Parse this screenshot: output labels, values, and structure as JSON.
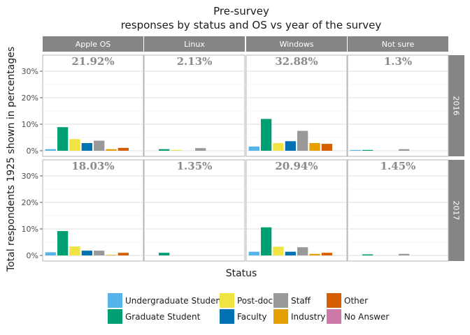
{
  "chart_data": {
    "type": "bar",
    "title": "Pre-survey",
    "subtitle": "responses by status and OS vs year of the survey",
    "xlabel": "Status",
    "ylabel": "Total respondents 1925 shown in percentages",
    "ylim": [
      0,
      35
    ],
    "yticks": [
      0,
      10,
      20,
      30
    ],
    "ytick_labels": [
      "0%",
      "10%",
      "20%",
      "30%"
    ],
    "facet_columns": [
      "Apple OS",
      "Linux",
      "Windows",
      "Not sure"
    ],
    "facet_rows": [
      "2016",
      "2017"
    ],
    "categories": [
      "Undergraduate Student",
      "Graduate Student",
      "Post-doc",
      "Faculty",
      "Staff",
      "Industry",
      "Other",
      "No Answer"
    ],
    "colors": [
      "#56B4E9",
      "#009E73",
      "#F0E442",
      "#0072B2",
      "#999999",
      "#E69F00",
      "#D55E00",
      "#CC79A7"
    ],
    "panels": [
      {
        "row": 0,
        "col": 0,
        "total_label": "21.92%",
        "values": [
          0.6,
          8.9,
          4.4,
          2.9,
          3.8,
          0.6,
          1.1,
          0
        ]
      },
      {
        "row": 0,
        "col": 1,
        "total_label": "2.13%",
        "values": [
          0,
          0.6,
          0.3,
          0,
          1.0,
          0,
          0,
          0
        ]
      },
      {
        "row": 0,
        "col": 2,
        "total_label": "32.88%",
        "values": [
          1.6,
          12.0,
          2.9,
          3.6,
          7.5,
          2.9,
          2.6,
          0
        ]
      },
      {
        "row": 0,
        "col": 3,
        "total_label": "1.3%",
        "values": [
          0.3,
          0.3,
          0,
          0,
          0.6,
          0,
          0,
          0
        ]
      },
      {
        "row": 1,
        "col": 0,
        "total_label": "18.03%",
        "values": [
          1.2,
          9.2,
          3.4,
          1.8,
          1.8,
          0.2,
          1.0,
          0
        ]
      },
      {
        "row": 1,
        "col": 1,
        "total_label": "1.35%",
        "values": [
          0,
          1.0,
          0,
          0,
          0,
          0,
          0,
          0
        ]
      },
      {
        "row": 1,
        "col": 2,
        "total_label": "20.94%",
        "values": [
          1.4,
          10.6,
          3.3,
          1.4,
          3.1,
          0.6,
          1.0,
          0
        ]
      },
      {
        "row": 1,
        "col": 3,
        "total_label": "1.45%",
        "values": [
          0,
          0.4,
          0,
          0,
          0.6,
          0,
          0,
          0
        ]
      }
    ],
    "legend": {
      "position": "bottom",
      "entries": [
        "Undergraduate Student",
        "Graduate Student",
        "Post-doc",
        "Faculty",
        "Staff",
        "Industry",
        "Other",
        "No Answer"
      ]
    }
  }
}
